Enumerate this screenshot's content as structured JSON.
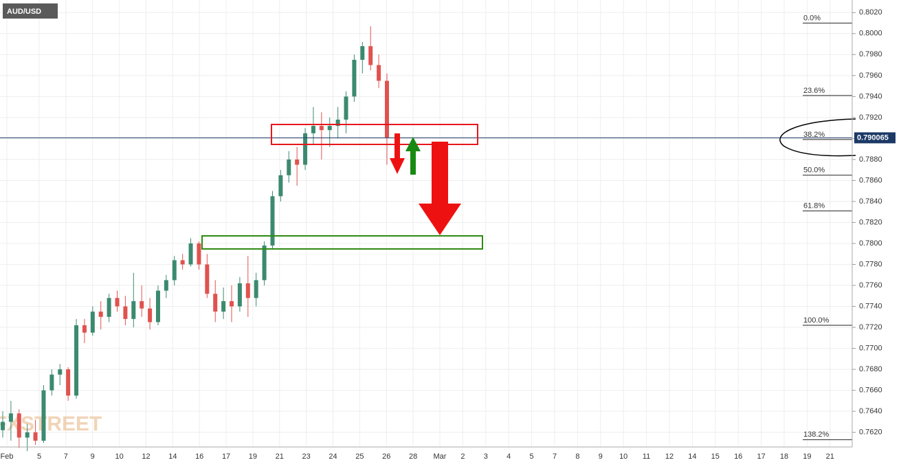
{
  "chart_data": {
    "type": "candlestick",
    "title": "AUD/USD",
    "watermark": "FXSTREET",
    "up_color": "#3b8a6f",
    "down_color": "#e0524f",
    "grid": true,
    "ylim": [
      0.7606,
      0.8032
    ],
    "yticks": [
      {
        "value": 0.762,
        "label": "0.7620"
      },
      {
        "value": 0.764,
        "label": "0.7640"
      },
      {
        "value": 0.766,
        "label": "0.7660"
      },
      {
        "value": 0.768,
        "label": "0.7680"
      },
      {
        "value": 0.77,
        "label": "0.7700"
      },
      {
        "value": 0.772,
        "label": "0.7720"
      },
      {
        "value": 0.774,
        "label": "0.7740"
      },
      {
        "value": 0.776,
        "label": "0.7760"
      },
      {
        "value": 0.778,
        "label": "0.7780"
      },
      {
        "value": 0.78,
        "label": "0.7800"
      },
      {
        "value": 0.782,
        "label": "0.7820"
      },
      {
        "value": 0.784,
        "label": "0.7840"
      },
      {
        "value": 0.786,
        "label": "0.7860"
      },
      {
        "value": 0.788,
        "label": "0.7880"
      },
      {
        "value": 0.79,
        "label": "0.7900"
      },
      {
        "value": 0.792,
        "label": "0.7920"
      },
      {
        "value": 0.794,
        "label": "0.7940"
      },
      {
        "value": 0.796,
        "label": "0.7960"
      },
      {
        "value": 0.798,
        "label": "0.7980"
      },
      {
        "value": 0.8,
        "label": "0.8000"
      },
      {
        "value": 0.802,
        "label": "0.8020"
      }
    ],
    "x_labels": [
      "Feb",
      "5",
      "7",
      "9",
      "10",
      "12",
      "14",
      "16",
      "17",
      "19",
      "21",
      "23",
      "24",
      "25",
      "26",
      "28",
      "Mar",
      "2",
      "3",
      "4",
      "5",
      "7",
      "8",
      "9",
      "10",
      "11",
      "12",
      "14",
      "15",
      "16",
      "17",
      "18",
      "19",
      "21"
    ],
    "current_price": 0.790065,
    "fib_levels": [
      {
        "label": "0.0%",
        "price": 0.801
      },
      {
        "label": "23.6%",
        "price": 0.7941
      },
      {
        "label": "38.2%",
        "price": 0.7899
      },
      {
        "label": "50.0%",
        "price": 0.7865
      },
      {
        "label": "61.8%",
        "price": 0.7831
      },
      {
        "label": "100.0%",
        "price": 0.7722
      },
      {
        "label": "138.2%",
        "price": 0.7613
      }
    ],
    "open": [
      0.7622,
      0.763,
      0.7638,
      0.7615,
      0.762,
      0.7612,
      0.766,
      0.7675,
      0.768,
      0.7655,
      0.7722,
      0.7715,
      0.7735,
      0.773,
      0.7748,
      0.774,
      0.7728,
      0.7745,
      0.7738,
      0.7725,
      0.7755,
      0.7765,
      0.7784,
      0.778,
      0.78,
      0.778,
      0.7752,
      0.7735,
      0.7745,
      0.774,
      0.7762,
      0.7748,
      0.7765,
      0.7798,
      0.7845,
      0.7865,
      0.788,
      0.7875,
      0.7905,
      0.7912,
      0.7908,
      0.7912,
      0.7918,
      0.794,
      0.7975,
      0.7988,
      0.797,
      0.7955
    ],
    "high": [
      0.764,
      0.765,
      0.7642,
      0.7628,
      0.7632,
      0.7665,
      0.768,
      0.7685,
      0.7682,
      0.7728,
      0.7728,
      0.774,
      0.7745,
      0.7752,
      0.7755,
      0.775,
      0.7772,
      0.776,
      0.7748,
      0.776,
      0.777,
      0.7788,
      0.779,
      0.7805,
      0.7802,
      0.779,
      0.7765,
      0.7758,
      0.776,
      0.7768,
      0.7788,
      0.7772,
      0.7802,
      0.785,
      0.787,
      0.7888,
      0.7892,
      0.791,
      0.793,
      0.7925,
      0.792,
      0.793,
      0.7945,
      0.798,
      0.7992,
      0.8007,
      0.798,
      0.7962
    ],
    "low": [
      0.7615,
      0.7612,
      0.7605,
      0.7602,
      0.7608,
      0.761,
      0.7655,
      0.7665,
      0.765,
      0.7652,
      0.7705,
      0.7712,
      0.7718,
      0.7725,
      0.7735,
      0.7722,
      0.772,
      0.773,
      0.7718,
      0.7722,
      0.7748,
      0.776,
      0.7775,
      0.7778,
      0.7775,
      0.7748,
      0.7725,
      0.7728,
      0.7725,
      0.7735,
      0.773,
      0.774,
      0.776,
      0.7795,
      0.784,
      0.7858,
      0.7855,
      0.787,
      0.7895,
      0.788,
      0.7892,
      0.79,
      0.7905,
      0.7935,
      0.7962,
      0.7965,
      0.7948,
      0.7875
    ],
    "close": [
      0.763,
      0.7638,
      0.7615,
      0.762,
      0.7612,
      0.766,
      0.7675,
      0.768,
      0.7655,
      0.7722,
      0.7715,
      0.7735,
      0.773,
      0.7748,
      0.774,
      0.7728,
      0.7745,
      0.7738,
      0.7725,
      0.7755,
      0.7765,
      0.7784,
      0.778,
      0.78,
      0.778,
      0.7752,
      0.7735,
      0.7745,
      0.774,
      0.7762,
      0.7748,
      0.7765,
      0.7798,
      0.7845,
      0.7865,
      0.788,
      0.7875,
      0.7905,
      0.7912,
      0.7908,
      0.7912,
      0.7918,
      0.794,
      0.7975,
      0.7988,
      0.797,
      0.7955,
      0.7901
    ]
  }
}
